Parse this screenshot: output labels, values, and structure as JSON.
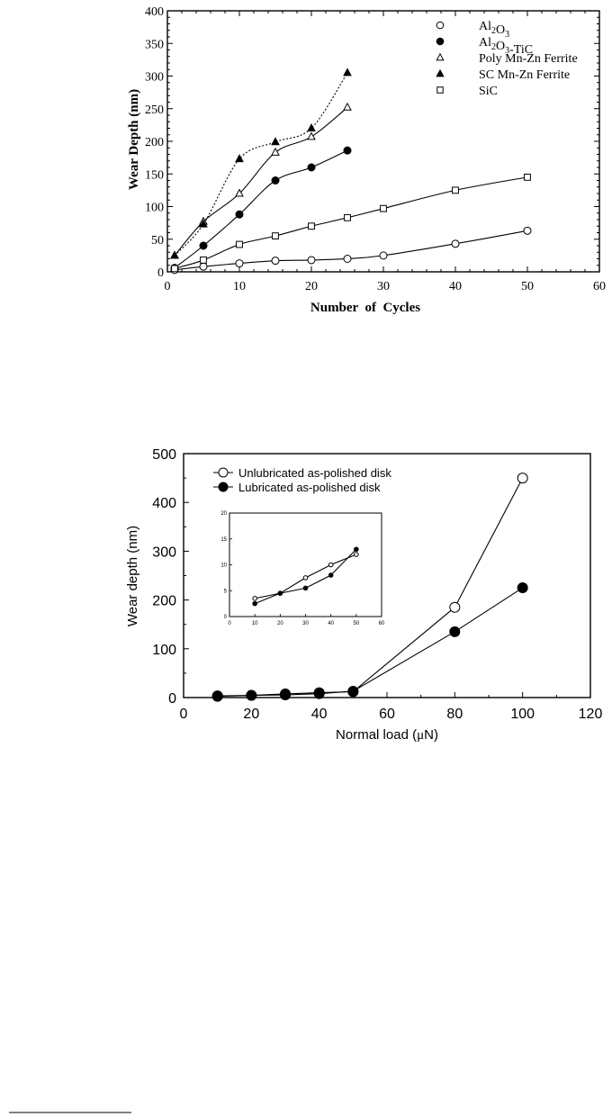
{
  "chart_data": [
    {
      "type": "line",
      "title": "",
      "xlabel": "Number  of  Cycles",
      "ylabel": "Wear Depth (nm)",
      "xlim": [
        0,
        60
      ],
      "ylim": [
        0,
        400
      ],
      "xticks": [
        "0",
        "10",
        "20",
        "30",
        "40",
        "50",
        "60"
      ],
      "yticks": [
        "0",
        "50",
        "100",
        "150",
        "200",
        "250",
        "300",
        "350",
        "400"
      ],
      "legend_position": "top-right",
      "series": [
        {
          "name_main": "Al",
          "name_sub1": "2",
          "name_mid": "O",
          "name_sub2": "3",
          "name_tail": "",
          "marker": "open-circle",
          "dashed": false,
          "x": [
            1,
            5,
            10,
            15,
            20,
            25,
            30,
            40,
            50
          ],
          "y": [
            3,
            8,
            13,
            17,
            18,
            20,
            25,
            43,
            63
          ]
        },
        {
          "name_main": "Al",
          "name_sub1": "2",
          "name_mid": "O",
          "name_sub2": "3",
          "name_tail": "-TiC",
          "marker": "filled-circle",
          "dashed": false,
          "x": [
            1,
            5,
            10,
            15,
            20,
            25
          ],
          "y": [
            6,
            40,
            88,
            140,
            160,
            186
          ]
        },
        {
          "name_main": "Poly Mn-Zn Ferrite",
          "name_sub1": "",
          "name_mid": "",
          "name_sub2": "",
          "name_tail": "",
          "marker": "open-triangle",
          "dashed": false,
          "x": [
            1,
            5,
            10,
            15,
            20,
            25
          ],
          "y": [
            25,
            77,
            120,
            183,
            207,
            252
          ]
        },
        {
          "name_main": "SC Mn-Zn Ferrite",
          "name_sub1": "",
          "name_mid": "",
          "name_sub2": "",
          "name_tail": "",
          "marker": "filled-triangle",
          "dashed": true,
          "x": [
            1,
            5,
            10,
            15,
            20,
            25
          ],
          "y": [
            25,
            73,
            173,
            199,
            220,
            305
          ]
        },
        {
          "name_main": "SiC",
          "name_sub1": "",
          "name_mid": "",
          "name_sub2": "",
          "name_tail": "",
          "marker": "open-square",
          "dashed": false,
          "x": [
            1,
            5,
            10,
            15,
            20,
            25,
            30,
            40,
            50
          ],
          "y": [
            5,
            18,
            42,
            55,
            70,
            83,
            97,
            125,
            145
          ]
        }
      ]
    },
    {
      "type": "line",
      "title": "",
      "xlabel_pre": "Normal load (",
      "xlabel_mu": "μ",
      "xlabel_post": "N)",
      "ylabel": "Wear depth (nm)",
      "xlim": [
        0,
        120
      ],
      "ylim": [
        0,
        500
      ],
      "xticks": [
        "0",
        "20",
        "40",
        "60",
        "80",
        "100",
        "120"
      ],
      "yticks": [
        "0",
        "100",
        "200",
        "300",
        "400",
        "500"
      ],
      "legend_position": "top-left",
      "series": [
        {
          "name": "Unlubricated as-polished disk",
          "marker": "open-circle",
          "x": [
            10,
            20,
            30,
            40,
            50,
            80,
            100
          ],
          "y": [
            3.5,
            4.5,
            7.5,
            10,
            12,
            185,
            450
          ]
        },
        {
          "name": "Lubricated as-polished disk",
          "marker": "filled-circle",
          "x": [
            10,
            20,
            30,
            40,
            50,
            80,
            100
          ],
          "y": [
            2.5,
            4.5,
            5.5,
            8,
            13,
            135,
            225
          ]
        }
      ],
      "inset": {
        "xlim": [
          0,
          60
        ],
        "ylim": [
          0,
          20
        ],
        "xticks": [
          "0",
          "10",
          "20",
          "30",
          "40",
          "50",
          "60"
        ],
        "yticks": [
          "0",
          "5",
          "10",
          "15",
          "20"
        ],
        "series": [
          {
            "marker": "open-circle",
            "x": [
              10,
              20,
              30,
              40,
              50
            ],
            "y": [
              3.5,
              4.5,
              7.5,
              10,
              12
            ]
          },
          {
            "marker": "filled-circle",
            "x": [
              10,
              20,
              30,
              40,
              50
            ],
            "y": [
              2.5,
              4.5,
              5.5,
              8,
              13
            ]
          }
        ]
      }
    }
  ]
}
